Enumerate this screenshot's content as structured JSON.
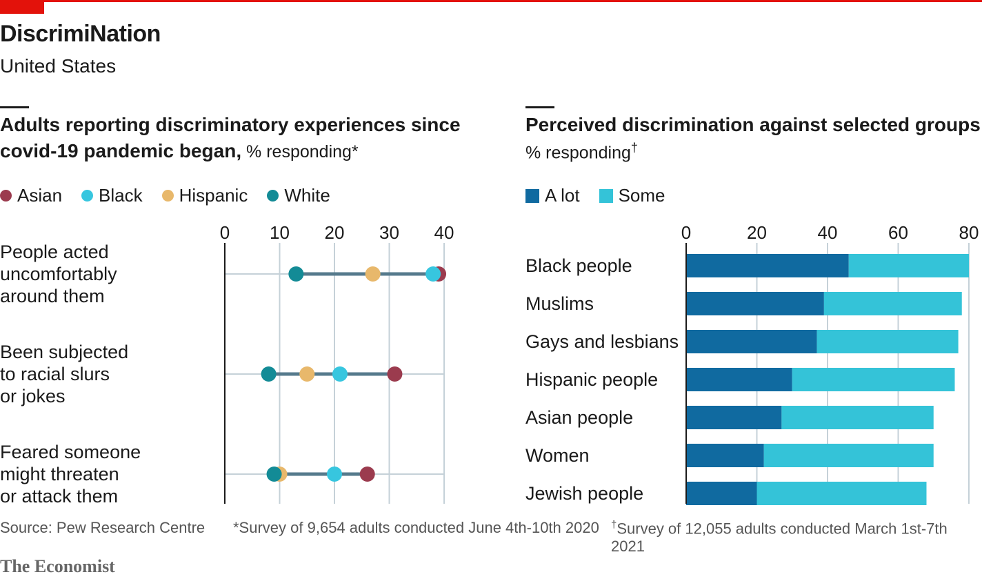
{
  "header": {
    "title": "DiscrimiNation",
    "subtitle": "United States"
  },
  "colors": {
    "asian": "#9b3b4e",
    "black": "#37c6df",
    "hispanic": "#e8b86b",
    "white": "#138b96",
    "a_lot": "#106aa0",
    "some": "#34c3d8",
    "brand_red": "#e3120b"
  },
  "left_panel": {
    "title_line1": "Adults reporting discriminatory experiences since",
    "title_line2": "covid-19 pandemic began,",
    "unit": " % responding*"
  },
  "right_panel": {
    "title": "Perceived discrimination against selected groups",
    "unit": "% responding",
    "unit_mark": "†"
  },
  "footer": {
    "source": "Source: Pew Research Centre",
    "note1": "*Survey of 9,654 adults conducted June 4th-10th 2020",
    "note2_mark": "†",
    "note2": "Survey of 12,055 adults conducted March 1st-7th 2021"
  },
  "brand": "The Economist",
  "chart_data": [
    {
      "type": "scatter",
      "title": "Adults reporting discriminatory experiences since covid-19 pandemic began",
      "ylabel": "% responding*",
      "xlim": [
        0,
        40
      ],
      "xticks": [
        0,
        10,
        20,
        30,
        40
      ],
      "grid": true,
      "legend_position": "top-left",
      "categories": [
        "People acted uncomfortably around them",
        "Been subjected to racial slurs or jokes",
        "Feared someone might threaten or attack them"
      ],
      "category_lines": [
        [
          "People acted",
          "uncomfortably",
          "around them"
        ],
        [
          "Been subjected",
          "to racial slurs",
          "or jokes"
        ],
        [
          "Feared someone",
          "might threaten",
          "or attack them"
        ]
      ],
      "series": [
        {
          "name": "Asian",
          "color_key": "asian",
          "values": [
            39,
            31,
            26
          ]
        },
        {
          "name": "Black",
          "color_key": "black",
          "values": [
            38,
            21,
            20
          ]
        },
        {
          "name": "Hispanic",
          "color_key": "hispanic",
          "values": [
            27,
            15,
            10
          ]
        },
        {
          "name": "White",
          "color_key": "white",
          "values": [
            13,
            8,
            9
          ]
        }
      ]
    },
    {
      "type": "bar",
      "orientation": "horizontal",
      "stacked": true,
      "title": "Perceived discrimination against selected groups",
      "ylabel": "% responding†",
      "xlim": [
        0,
        80
      ],
      "xticks": [
        0,
        20,
        40,
        60,
        80
      ],
      "legend_position": "top-left",
      "categories": [
        "Black people",
        "Muslims",
        "Gays and lesbians",
        "Hispanic people",
        "Asian people",
        "Women",
        "Jewish people"
      ],
      "series": [
        {
          "name": "A lot",
          "color_key": "a_lot",
          "values": [
            46,
            39,
            37,
            30,
            27,
            22,
            20
          ]
        },
        {
          "name": "Some",
          "color_key": "some",
          "values": [
            34,
            39,
            40,
            46,
            43,
            48,
            48
          ]
        }
      ]
    }
  ]
}
